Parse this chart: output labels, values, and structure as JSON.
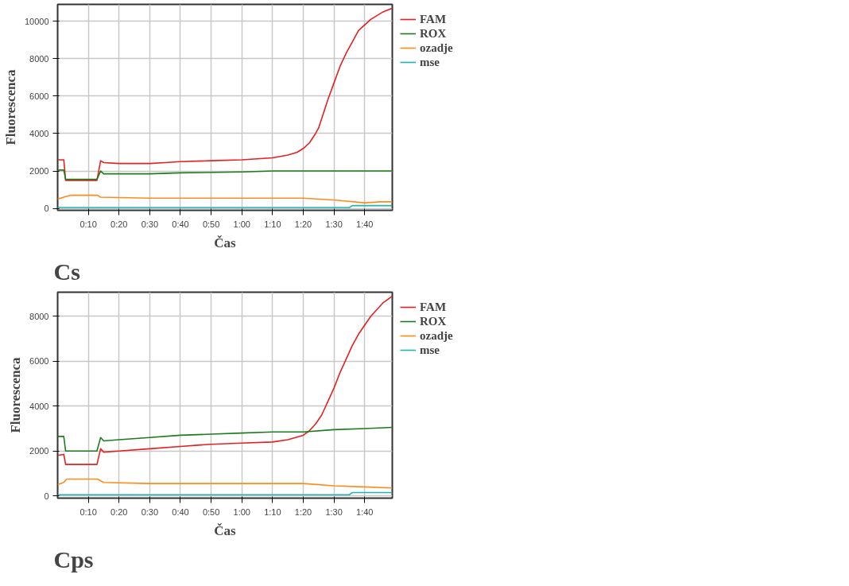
{
  "chart_data": [
    {
      "type": "line",
      "xlabel": "Čas",
      "ylabel": "Fluorescenca",
      "annotations": [
        "Cs"
      ],
      "legend": "top right",
      "grid": true,
      "line_style": "solid",
      "marker": "none",
      "xlim": [
        0,
        109
      ],
      "xticks": [
        {
          "value": 10,
          "label": "0:10"
        },
        {
          "value": 20,
          "label": "0:20"
        },
        {
          "value": 30,
          "label": "0:30"
        },
        {
          "value": 40,
          "label": "0:40"
        },
        {
          "value": 50,
          "label": "0:50"
        },
        {
          "value": 60,
          "label": "1:00"
        },
        {
          "value": 70,
          "label": "1:10"
        },
        {
          "value": 80,
          "label": "1:20"
        },
        {
          "value": 90,
          "label": "1:30"
        },
        {
          "value": 100,
          "label": "1:40"
        }
      ],
      "ylim": [
        -100,
        10900
      ],
      "yticks": [
        0,
        2000,
        4000,
        6000,
        8000,
        10000
      ],
      "series": [
        {
          "name": "FAM",
          "color": "#e62020",
          "x": [
            0,
            2,
            2.6,
            12.8,
            14,
            15,
            20,
            30,
            35,
            40,
            50,
            60,
            70,
            75,
            78,
            80,
            82,
            84,
            85,
            86,
            88,
            90,
            92,
            94,
            96,
            98,
            100,
            102,
            104,
            106,
            109
          ],
          "values": [
            2600,
            2600,
            1500,
            1500,
            2550,
            2450,
            2400,
            2400,
            2450,
            2500,
            2550,
            2600,
            2700,
            2850,
            3000,
            3200,
            3500,
            4000,
            4300,
            4800,
            5800,
            6700,
            7600,
            8300,
            8900,
            9500,
            9800,
            10100,
            10300,
            10500,
            10700
          ]
        },
        {
          "name": "ROX",
          "color": "#1e7b1e",
          "x": [
            0,
            2,
            2.6,
            12.8,
            14,
            15,
            30,
            40,
            60,
            70,
            90,
            100,
            109
          ],
          "values": [
            2050,
            2050,
            1550,
            1550,
            2000,
            1850,
            1850,
            1900,
            1950,
            2000,
            2000,
            2000,
            2000
          ]
        },
        {
          "name": "ozadje",
          "color": "#ff8c1a",
          "x": [
            0,
            2,
            4,
            13,
            14,
            30,
            80,
            90,
            100,
            105,
            109
          ],
          "values": [
            500,
            600,
            700,
            700,
            600,
            550,
            550,
            450,
            300,
            350,
            350
          ]
        },
        {
          "name": "mse",
          "color": "#22b2b2",
          "x": [
            0,
            95,
            96,
            109
          ],
          "values": [
            50,
            50,
            150,
            150
          ]
        }
      ]
    },
    {
      "type": "line",
      "xlabel": "Čas",
      "ylabel": "Fluorescenca",
      "annotations": [
        "Cps"
      ],
      "legend": "top right",
      "grid": true,
      "line_style": "solid",
      "marker": "none",
      "xlim": [
        0,
        109
      ],
      "xticks": [
        {
          "value": 10,
          "label": "0:10"
        },
        {
          "value": 20,
          "label": "0:20"
        },
        {
          "value": 30,
          "label": "0:30"
        },
        {
          "value": 40,
          "label": "0:40"
        },
        {
          "value": 50,
          "label": "0:50"
        },
        {
          "value": 60,
          "label": "1:00"
        },
        {
          "value": 70,
          "label": "1:10"
        },
        {
          "value": 80,
          "label": "1:20"
        },
        {
          "value": 90,
          "label": "1:30"
        },
        {
          "value": 100,
          "label": "1:40"
        }
      ],
      "ylim": [
        -100,
        9070
      ],
      "yticks": [
        0,
        2000,
        4000,
        6000,
        8000
      ],
      "series": [
        {
          "name": "FAM",
          "color": "#e62020",
          "x": [
            0,
            2,
            2.6,
            12.8,
            14,
            15,
            20,
            30,
            40,
            50,
            60,
            70,
            75,
            80,
            82,
            84,
            86,
            88,
            90,
            92,
            94,
            96,
            98,
            100,
            102,
            104,
            106,
            109
          ],
          "values": [
            1800,
            1850,
            1400,
            1400,
            2100,
            1950,
            2000,
            2100,
            2200,
            2300,
            2350,
            2400,
            2500,
            2700,
            2900,
            3200,
            3600,
            4200,
            4800,
            5500,
            6100,
            6700,
            7200,
            7600,
            8000,
            8300,
            8600,
            8900
          ]
        },
        {
          "name": "ROX",
          "color": "#1e7b1e",
          "x": [
            0,
            2,
            2.6,
            12.8,
            14,
            15,
            20,
            30,
            40,
            50,
            60,
            70,
            80,
            90,
            100,
            109
          ],
          "values": [
            2650,
            2650,
            2000,
            2000,
            2600,
            2450,
            2500,
            2600,
            2700,
            2750,
            2800,
            2850,
            2850,
            2950,
            3000,
            3050
          ]
        },
        {
          "name": "ozadje",
          "color": "#ff8c1a",
          "x": [
            0,
            2,
            3,
            13,
            15,
            30,
            80,
            90,
            100,
            109
          ],
          "values": [
            500,
            600,
            750,
            750,
            600,
            550,
            550,
            450,
            400,
            350
          ]
        },
        {
          "name": "mse",
          "color": "#22b2b2",
          "x": [
            0,
            95,
            96,
            109
          ],
          "values": [
            50,
            50,
            150,
            150
          ]
        }
      ]
    }
  ]
}
